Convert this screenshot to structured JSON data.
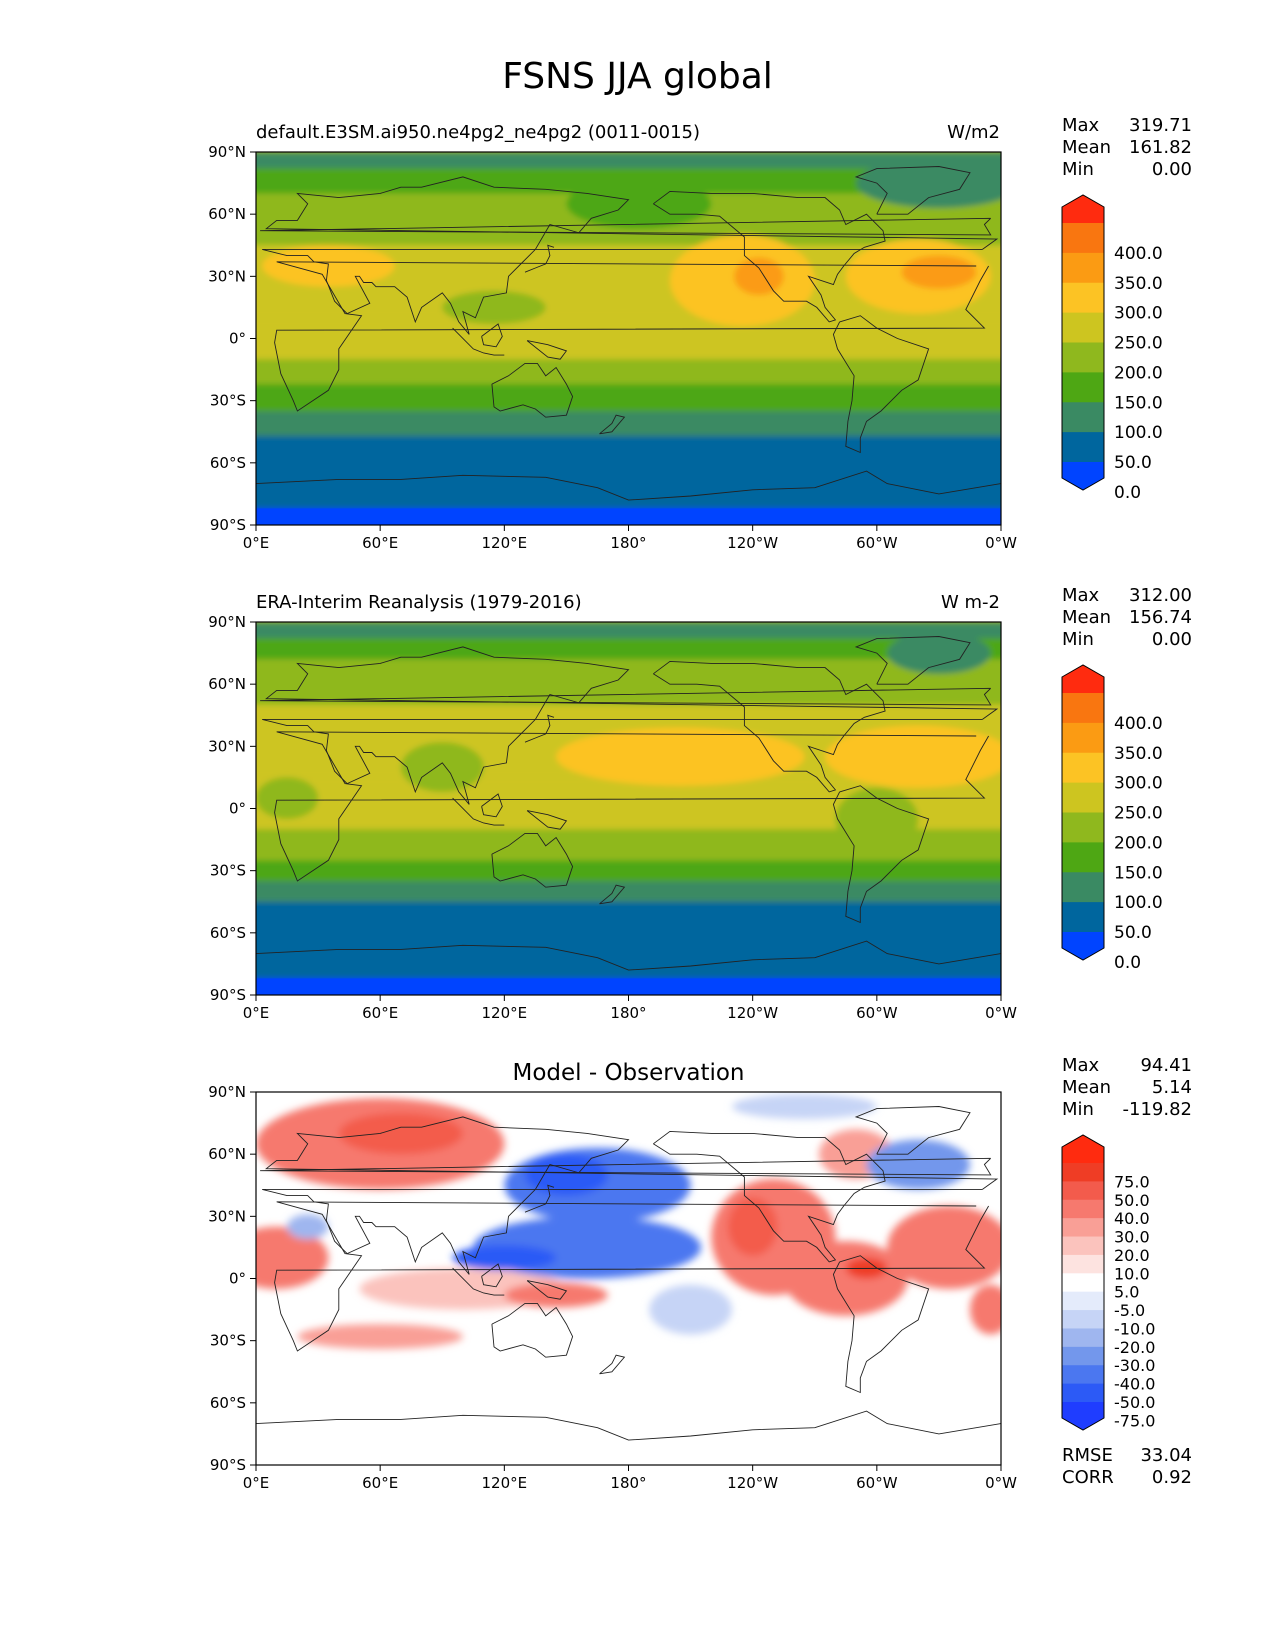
{
  "figure": {
    "title": "FSNS JJA global"
  },
  "colors": {
    "levels": [
      "#0044ff",
      "#00669e",
      "#3a8a63",
      "#4ea714",
      "#8fb81e",
      "#cdc520",
      "#fcc324",
      "#fb9b13",
      "#f97610",
      "#ff2b0f"
    ],
    "diff": [
      "#1f3dff",
      "#2c5af6",
      "#4b77f0",
      "#7397ec",
      "#9fb6ef",
      "#c6d4f6",
      "#e4ebfb",
      "#ffffff",
      "#fde3e0",
      "#fbc3bd",
      "#f99f96",
      "#f6796e",
      "#f35b4c",
      "#ef3d25",
      "#ff2b0f"
    ],
    "land_outline": "#222222"
  },
  "chart_data": [
    {
      "type": "heatmap",
      "title_left": "default.E3SM.ai950.ne4pg2_ne4pg2 (0011-0015)",
      "title_right": "W/m2",
      "stats": [
        {
          "label": "Max",
          "value": "319.71"
        },
        {
          "label": "Mean",
          "value": "161.82"
        },
        {
          "label": "Min",
          "value": "0.00"
        }
      ],
      "xlabels": [
        "0°E",
        "60°E",
        "120°E",
        "180°",
        "120°W",
        "60°W",
        "0°W"
      ],
      "ylabels": [
        "90°N",
        "60°N",
        "30°N",
        "0°",
        "30°S",
        "60°S",
        "90°S"
      ],
      "xlim": [
        0,
        360
      ],
      "ylim": [
        -90,
        90
      ],
      "colorbar_ticks": [
        "400.0",
        "350.0",
        "300.0",
        "250.0",
        "200.0",
        "150.0",
        "100.0",
        "50.0",
        "0.0"
      ],
      "lat_bands": [
        {
          "lat": [
            82,
            90
          ],
          "level": 2
        },
        {
          "lat": [
            70,
            82
          ],
          "level": 3
        },
        {
          "lat": [
            45,
            70
          ],
          "level": 4
        },
        {
          "lat": [
            10,
            45
          ],
          "level": 5
        },
        {
          "lat": [
            -10,
            10
          ],
          "level": 5
        },
        {
          "lat": [
            -22,
            -10
          ],
          "level": 4
        },
        {
          "lat": [
            -35,
            -22
          ],
          "level": 3
        },
        {
          "lat": [
            -47,
            -35
          ],
          "level": 2
        },
        {
          "lat": [
            -82,
            -47
          ],
          "level": 1
        },
        {
          "lat": [
            -90,
            -82
          ],
          "level": 0
        }
      ],
      "blobs": [
        {
          "lon": 235,
          "lat": 28,
          "rx": 35,
          "ry": 22,
          "level": 6
        },
        {
          "lon": 243,
          "lat": 30,
          "rx": 12,
          "ry": 9,
          "level": 7
        },
        {
          "lon": 320,
          "lat": 30,
          "rx": 35,
          "ry": 18,
          "level": 6
        },
        {
          "lon": 330,
          "lat": 32,
          "rx": 18,
          "ry": 8,
          "level": 7
        },
        {
          "lon": 35,
          "lat": 35,
          "rx": 32,
          "ry": 10,
          "level": 6
        },
        {
          "lon": 115,
          "lat": 15,
          "rx": 25,
          "ry": 8,
          "level": 4
        },
        {
          "lon": 185,
          "lat": 65,
          "rx": 35,
          "ry": 12,
          "level": 3
        },
        {
          "lon": 330,
          "lat": 75,
          "rx": 40,
          "ry": 12,
          "level": 2
        }
      ]
    },
    {
      "type": "heatmap",
      "title_left": "ERA-Interim Reanalysis (1979-2016)",
      "title_right": "W m-2",
      "stats": [
        {
          "label": "Max",
          "value": "312.00"
        },
        {
          "label": "Mean",
          "value": "156.74"
        },
        {
          "label": "Min",
          "value": "0.00"
        }
      ],
      "xlabels": [
        "0°E",
        "60°E",
        "120°E",
        "180°",
        "120°W",
        "60°W",
        "0°W"
      ],
      "ylabels": [
        "90°N",
        "60°N",
        "30°N",
        "0°",
        "30°S",
        "60°S",
        "90°S"
      ],
      "xlim": [
        0,
        360
      ],
      "ylim": [
        -90,
        90
      ],
      "colorbar_ticks": [
        "400.0",
        "350.0",
        "300.0",
        "250.0",
        "200.0",
        "150.0",
        "100.0",
        "50.0",
        "0.0"
      ],
      "lat_bands": [
        {
          "lat": [
            82,
            90
          ],
          "level": 2
        },
        {
          "lat": [
            72,
            82
          ],
          "level": 3
        },
        {
          "lat": [
            50,
            72
          ],
          "level": 4
        },
        {
          "lat": [
            15,
            50
          ],
          "level": 5
        },
        {
          "lat": [
            -10,
            15
          ],
          "level": 5
        },
        {
          "lat": [
            -25,
            -10
          ],
          "level": 4
        },
        {
          "lat": [
            -35,
            -25
          ],
          "level": 3
        },
        {
          "lat": [
            -45,
            -35
          ],
          "level": 2
        },
        {
          "lat": [
            -82,
            -45
          ],
          "level": 1
        },
        {
          "lat": [
            -90,
            -82
          ],
          "level": 0
        }
      ],
      "blobs": [
        {
          "lon": 205,
          "lat": 25,
          "rx": 60,
          "ry": 14,
          "level": 6
        },
        {
          "lon": 320,
          "lat": 25,
          "rx": 45,
          "ry": 15,
          "level": 6
        },
        {
          "lon": 300,
          "lat": -5,
          "rx": 20,
          "ry": 15,
          "level": 4
        },
        {
          "lon": 90,
          "lat": 20,
          "rx": 20,
          "ry": 12,
          "level": 4
        },
        {
          "lon": 15,
          "lat": 5,
          "rx": 15,
          "ry": 10,
          "level": 4
        },
        {
          "lon": 330,
          "lat": 75,
          "rx": 25,
          "ry": 10,
          "level": 2
        }
      ]
    },
    {
      "type": "heatmap",
      "title": "Model - Observation",
      "stats": [
        {
          "label": "Max",
          "value": "94.41"
        },
        {
          "label": "Mean",
          "value": "5.14"
        },
        {
          "label": "Min",
          "value": "-119.82"
        }
      ],
      "metrics": [
        {
          "label": "RMSE",
          "value": "33.04"
        },
        {
          "label": "CORR",
          "value": "0.92"
        }
      ],
      "xlabels": [
        "0°E",
        "60°E",
        "120°E",
        "180°",
        "120°W",
        "60°W",
        "0°W"
      ],
      "ylabels": [
        "90°N",
        "60°N",
        "30°N",
        "0°",
        "30°S",
        "60°S",
        "90°S"
      ],
      "xlim": [
        0,
        360
      ],
      "ylim": [
        -90,
        90
      ],
      "colorbar_ticks": [
        "75.0",
        "50.0",
        "40.0",
        "30.0",
        "20.0",
        "10.0",
        "5.0",
        "-5.0",
        "-10.0",
        "-20.0",
        "-30.0",
        "-40.0",
        "-50.0",
        "-75.0"
      ],
      "blobs": [
        {
          "lon": 60,
          "lat": 65,
          "rx": 60,
          "ry": 22,
          "level": 11
        },
        {
          "lon": 70,
          "lat": 70,
          "rx": 30,
          "ry": 10,
          "level": 12
        },
        {
          "lon": 10,
          "lat": 10,
          "rx": 25,
          "ry": 15,
          "level": 11
        },
        {
          "lon": 100,
          "lat": -5,
          "rx": 50,
          "ry": 10,
          "level": 9
        },
        {
          "lon": 145,
          "lat": -8,
          "rx": 25,
          "ry": 6,
          "level": 11
        },
        {
          "lon": 60,
          "lat": -28,
          "rx": 40,
          "ry": 6,
          "level": 10
        },
        {
          "lon": 250,
          "lat": 20,
          "rx": 30,
          "ry": 28,
          "level": 11
        },
        {
          "lon": 240,
          "lat": 25,
          "rx": 12,
          "ry": 14,
          "level": 12
        },
        {
          "lon": 285,
          "lat": 0,
          "rx": 30,
          "ry": 18,
          "level": 11
        },
        {
          "lon": 295,
          "lat": 5,
          "rx": 10,
          "ry": 5,
          "level": 13
        },
        {
          "lon": 335,
          "lat": 15,
          "rx": 30,
          "ry": 20,
          "level": 11
        },
        {
          "lon": 290,
          "lat": 60,
          "rx": 18,
          "ry": 12,
          "level": 10
        },
        {
          "lon": 355,
          "lat": -15,
          "rx": 10,
          "ry": 12,
          "level": 11
        },
        {
          "lon": 160,
          "lat": 15,
          "rx": 55,
          "ry": 15,
          "level": 2
        },
        {
          "lon": 165,
          "lat": 45,
          "rx": 45,
          "ry": 18,
          "level": 2
        },
        {
          "lon": 150,
          "lat": 50,
          "rx": 20,
          "ry": 10,
          "level": 1
        },
        {
          "lon": 120,
          "lat": 10,
          "rx": 25,
          "ry": 6,
          "level": 1
        },
        {
          "lon": 210,
          "lat": -15,
          "rx": 20,
          "ry": 12,
          "level": 5
        },
        {
          "lon": 320,
          "lat": 55,
          "rx": 25,
          "ry": 12,
          "level": 3
        },
        {
          "lon": 265,
          "lat": 83,
          "rx": 35,
          "ry": 6,
          "level": 5
        },
        {
          "lon": 25,
          "lat": 25,
          "rx": 10,
          "ry": 6,
          "level": 4
        }
      ]
    }
  ]
}
